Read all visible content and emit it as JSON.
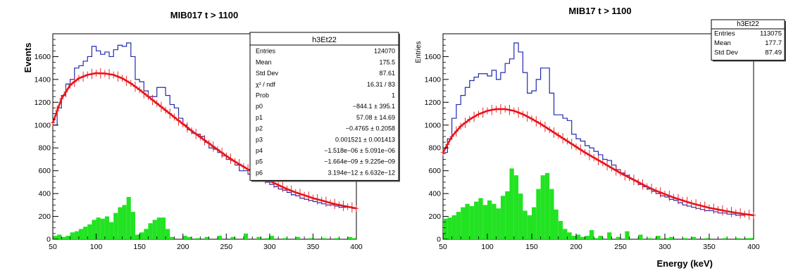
{
  "figure": {
    "left_ylabel": "Events",
    "bottom_xlabel": "Energy (keV)"
  },
  "chart_data": [
    {
      "type": "histogram",
      "title": "MIB017 t > 1100",
      "ylabel": "",
      "xlim": [
        50,
        400
      ],
      "ylim": [
        0,
        1800
      ],
      "x_ticks": [
        50,
        100,
        150,
        200,
        250,
        300,
        350,
        400
      ],
      "y_ticks": [
        0,
        200,
        400,
        600,
        800,
        1000,
        1200,
        1400,
        1600
      ],
      "grid": false,
      "bin_width": 5,
      "stats_box": {
        "title": "h3Et22",
        "placement": "top-right",
        "rows": [
          {
            "label": "Entries",
            "value": "124070"
          },
          {
            "label": "Mean",
            "value": "175.5"
          },
          {
            "label": "Std Dev",
            "value": "87.61"
          },
          {
            "label": "χ² / ndf",
            "value": "16.31 / 83"
          },
          {
            "label": "Prob",
            "value": "1"
          },
          {
            "label": "p0",
            "value": "−844.1 ± 395.1"
          },
          {
            "label": "p1",
            "value": "57.08 ± 14.69"
          },
          {
            "label": "p2",
            "value": "−0.4765 ± 0.2058"
          },
          {
            "label": "p3",
            "value": "0.001521 ± 0.001413"
          },
          {
            "label": "p4",
            "value": "−1.518e−06 ± 5.091e−06"
          },
          {
            "label": "p5",
            "value": "−1.664e−09 ± 9.225e−09"
          },
          {
            "label": "p6",
            "value": "3.194e−12 ± 6.632e−12"
          }
        ]
      },
      "series": [
        {
          "type": "step",
          "color": "#1f2bb0",
          "x": [
            50,
            55,
            60,
            65,
            70,
            75,
            80,
            85,
            90,
            95,
            100,
            105,
            110,
            115,
            120,
            125,
            130,
            135,
            140,
            145,
            150,
            155,
            160,
            165,
            170,
            175,
            180,
            185,
            190,
            195,
            200,
            205,
            210,
            215,
            220,
            225,
            230,
            235,
            240,
            245,
            250,
            255,
            260,
            265,
            270,
            275,
            280,
            285,
            290,
            295,
            300,
            305,
            310,
            315,
            320,
            325,
            330,
            335,
            340,
            345,
            350,
            355,
            360,
            365,
            370,
            375,
            380,
            385,
            390,
            395
          ],
          "values": [
            1000,
            1150,
            1260,
            1360,
            1400,
            1500,
            1520,
            1560,
            1600,
            1690,
            1650,
            1620,
            1640,
            1600,
            1660,
            1700,
            1690,
            1720,
            1600,
            1400,
            1380,
            1300,
            1250,
            1250,
            1330,
            1330,
            1260,
            1180,
            1150,
            1060,
            1000,
            960,
            930,
            920,
            900,
            850,
            800,
            790,
            760,
            730,
            700,
            690,
            650,
            600,
            600,
            570,
            550,
            530,
            520,
            500,
            480,
            460,
            440,
            430,
            410,
            390,
            380,
            360,
            350,
            340,
            330,
            320,
            310,
            300,
            300,
            290,
            280,
            280,
            280,
            270
          ]
        },
        {
          "type": "fit",
          "color": "#e8141a",
          "x": [
            50,
            60,
            70,
            80,
            90,
            100,
            110,
            120,
            130,
            140,
            150,
            160,
            170,
            180,
            190,
            200,
            210,
            220,
            230,
            240,
            250,
            260,
            270,
            280,
            290,
            300,
            310,
            320,
            330,
            340,
            350,
            360,
            370,
            380,
            390,
            400
          ],
          "values": [
            1020,
            1230,
            1350,
            1410,
            1440,
            1455,
            1452,
            1440,
            1410,
            1365,
            1310,
            1250,
            1190,
            1130,
            1070,
            1010,
            950,
            895,
            840,
            785,
            730,
            680,
            635,
            590,
            550,
            510,
            475,
            440,
            410,
            385,
            360,
            340,
            318,
            300,
            285,
            270
          ]
        },
        {
          "type": "step",
          "color": "#22e322",
          "x": [
            50,
            55,
            60,
            65,
            70,
            75,
            80,
            85,
            90,
            95,
            100,
            105,
            110,
            115,
            120,
            125,
            130,
            135,
            140,
            145,
            150,
            155,
            160,
            165,
            170,
            175,
            180,
            185,
            190,
            195,
            200,
            205,
            210,
            215,
            220,
            225,
            230,
            235,
            240,
            245,
            250,
            255,
            260,
            265,
            270,
            275,
            280,
            285,
            290,
            295,
            300,
            305,
            310,
            315,
            320,
            325,
            330,
            335,
            340,
            345,
            350,
            355,
            360,
            365,
            370,
            375,
            380,
            385,
            390,
            395
          ],
          "values": [
            30,
            40,
            20,
            30,
            60,
            70,
            90,
            110,
            130,
            170,
            190,
            180,
            200,
            150,
            230,
            280,
            300,
            370,
            240,
            40,
            60,
            90,
            140,
            170,
            190,
            190,
            90,
            20,
            0,
            0,
            30,
            20,
            0,
            10,
            0,
            20,
            0,
            0,
            30,
            0,
            0,
            20,
            0,
            0,
            50,
            0,
            0,
            20,
            0,
            10,
            30,
            0,
            0,
            10,
            0,
            0,
            20,
            0,
            0,
            10,
            0,
            0,
            10,
            0,
            0,
            10,
            0,
            0,
            20,
            10
          ]
        }
      ]
    },
    {
      "type": "histogram",
      "title": "MIB17 t > 1100",
      "ylabel": "Entries",
      "xlim": [
        50,
        400
      ],
      "ylim": [
        0,
        1800
      ],
      "x_ticks": [
        50,
        100,
        150,
        200,
        250,
        300,
        350,
        400
      ],
      "y_ticks": [
        0,
        200,
        400,
        600,
        800,
        1000,
        1200,
        1400,
        1600
      ],
      "grid": false,
      "bin_width": 5,
      "stats_box": {
        "title": "h3Et22",
        "placement": "top-right",
        "rows": [
          {
            "label": "Entries",
            "value": "113075"
          },
          {
            "label": "Mean",
            "value": "177.7"
          },
          {
            "label": "Std Dev",
            "value": "87.49"
          }
        ]
      },
      "series": [
        {
          "type": "step",
          "color": "#1f2bb0",
          "x": [
            50,
            55,
            60,
            65,
            70,
            75,
            80,
            85,
            90,
            95,
            100,
            105,
            110,
            115,
            120,
            125,
            130,
            135,
            140,
            145,
            150,
            155,
            160,
            165,
            170,
            175,
            180,
            185,
            190,
            195,
            200,
            205,
            210,
            215,
            220,
            225,
            230,
            235,
            240,
            245,
            250,
            255,
            260,
            265,
            270,
            275,
            280,
            285,
            290,
            295,
            300,
            305,
            310,
            315,
            320,
            325,
            330,
            335,
            340,
            345,
            350,
            355,
            360,
            365,
            370,
            375,
            380,
            385,
            390,
            395
          ],
          "values": [
            760,
            880,
            1060,
            1180,
            1260,
            1330,
            1390,
            1420,
            1450,
            1450,
            1430,
            1480,
            1400,
            1460,
            1540,
            1580,
            1720,
            1640,
            1460,
            1280,
            1300,
            1400,
            1500,
            1500,
            1280,
            1090,
            1090,
            1060,
            1040,
            920,
            880,
            860,
            820,
            800,
            770,
            740,
            700,
            690,
            650,
            610,
            580,
            560,
            530,
            510,
            480,
            460,
            440,
            420,
            400,
            380,
            370,
            350,
            340,
            320,
            300,
            290,
            280,
            270,
            260,
            250,
            250,
            240,
            230,
            230,
            220,
            220,
            210,
            210,
            220,
            210
          ]
        },
        {
          "type": "fit",
          "color": "#e8141a",
          "x": [
            50,
            60,
            70,
            80,
            90,
            100,
            110,
            120,
            130,
            140,
            150,
            160,
            170,
            180,
            190,
            200,
            210,
            220,
            230,
            240,
            250,
            260,
            270,
            280,
            290,
            300,
            310,
            320,
            330,
            340,
            350,
            360,
            370,
            380,
            390,
            400
          ],
          "values": [
            760,
            900,
            990,
            1050,
            1095,
            1125,
            1140,
            1140,
            1125,
            1095,
            1055,
            1010,
            960,
            910,
            860,
            810,
            760,
            715,
            670,
            625,
            580,
            540,
            500,
            460,
            425,
            395,
            365,
            340,
            315,
            295,
            275,
            260,
            245,
            232,
            220,
            210
          ]
        },
        {
          "type": "step",
          "color": "#22e322",
          "x": [
            50,
            55,
            60,
            65,
            70,
            75,
            80,
            85,
            90,
            95,
            100,
            105,
            110,
            115,
            120,
            125,
            130,
            135,
            140,
            145,
            150,
            155,
            160,
            165,
            170,
            175,
            180,
            185,
            190,
            195,
            200,
            205,
            210,
            215,
            220,
            225,
            230,
            235,
            240,
            245,
            250,
            255,
            260,
            265,
            270,
            275,
            280,
            285,
            290,
            295,
            300,
            305,
            310,
            315,
            320,
            325,
            330,
            335,
            340,
            345,
            350,
            355,
            360,
            365,
            370,
            375,
            380,
            385,
            390,
            395
          ],
          "values": [
            180,
            190,
            210,
            240,
            280,
            310,
            290,
            330,
            360,
            300,
            340,
            310,
            270,
            380,
            420,
            620,
            560,
            400,
            250,
            210,
            280,
            440,
            560,
            580,
            440,
            260,
            160,
            90,
            60,
            30,
            40,
            20,
            30,
            80,
            10,
            30,
            0,
            60,
            0,
            20,
            0,
            70,
            0,
            0,
            40,
            0,
            10,
            0,
            30,
            0,
            10,
            20,
            0,
            0,
            10,
            0,
            20,
            0,
            0,
            10,
            0,
            0,
            0,
            10,
            0,
            0,
            10,
            0,
            10,
            10
          ]
        }
      ]
    }
  ]
}
